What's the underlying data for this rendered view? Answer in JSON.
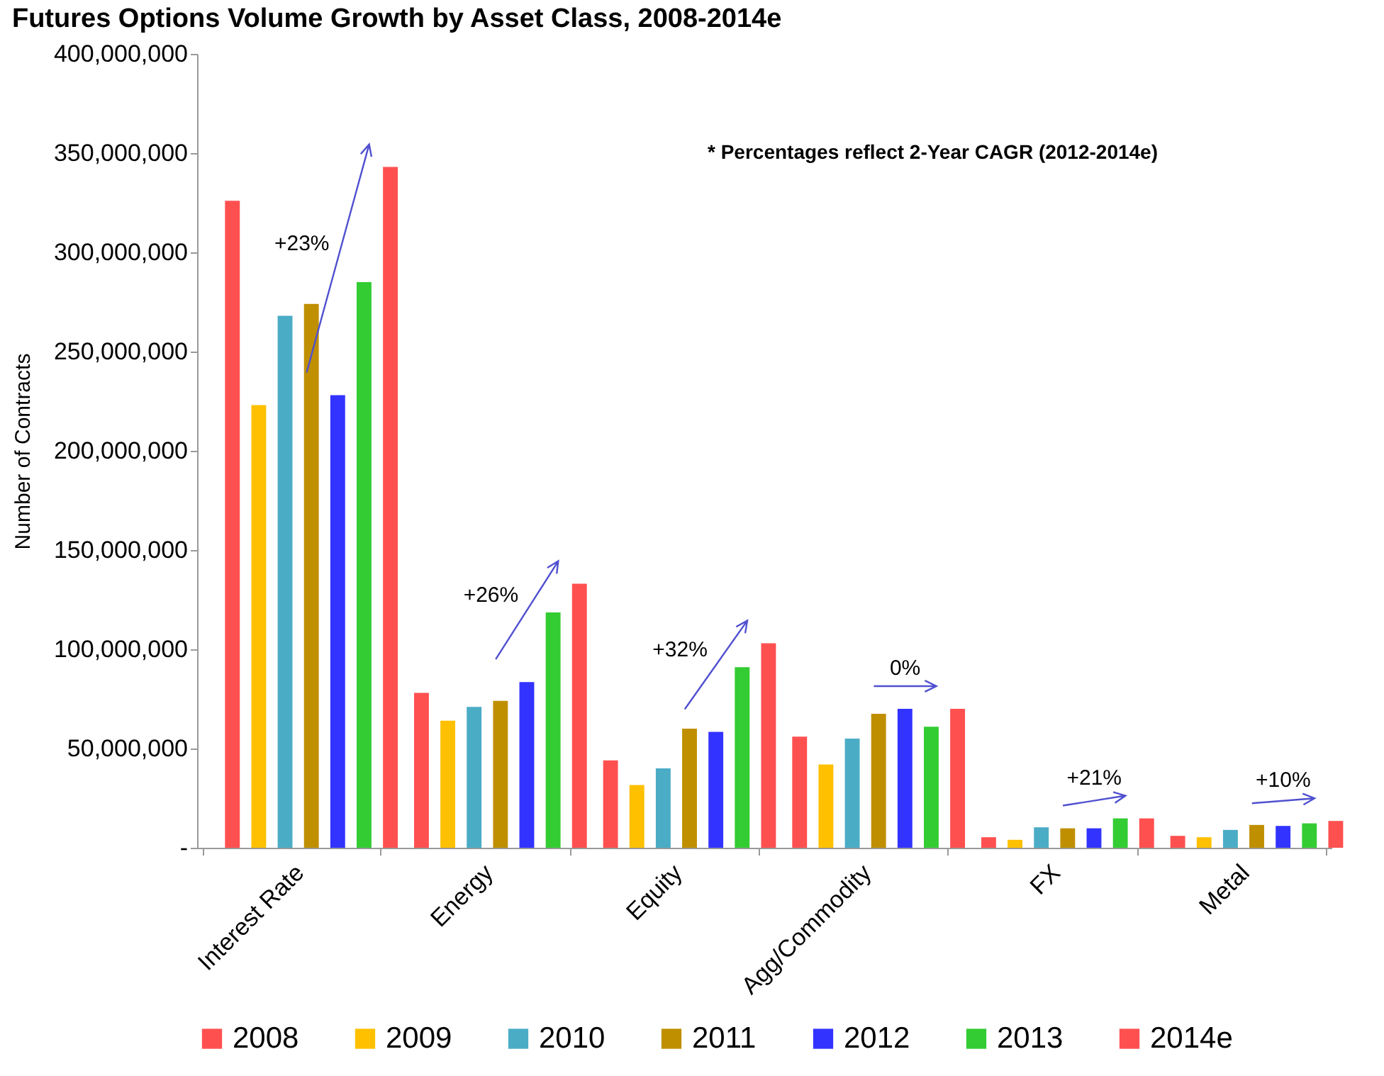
{
  "chart_data": {
    "type": "bar",
    "title": "Futures Options Volume Growth by Asset Class, 2008-2014e",
    "ylabel": "Number of Contracts",
    "categories": [
      "Interest Rate",
      "Energy",
      "Equity",
      "Agg/Commodity",
      "FX",
      "Metal"
    ],
    "series": [
      {
        "name": "2008",
        "color": "#ff5050",
        "values": [
          326000000,
          78000000,
          44000000,
          56000000,
          5300000,
          6000000
        ]
      },
      {
        "name": "2009",
        "color": "#ffc000",
        "values": [
          223000000,
          64000000,
          31600000,
          42000000,
          4000000,
          5300000
        ]
      },
      {
        "name": "2010",
        "color": "#4bacc6",
        "values": [
          268000000,
          71000000,
          40000000,
          55000000,
          10300000,
          9000000
        ]
      },
      {
        "name": "2011",
        "color": "#bf8f00",
        "values": [
          274000000,
          74000000,
          60000000,
          67500000,
          9800000,
          11500000
        ]
      },
      {
        "name": "2012",
        "color": "#3333ff",
        "values": [
          228000000,
          83500000,
          58400000,
          70000000,
          9800000,
          11000000
        ]
      },
      {
        "name": "2013",
        "color": "#33cc33",
        "values": [
          285000000,
          118600000,
          91000000,
          61000000,
          14800000,
          12300000
        ]
      },
      {
        "name": "2014e",
        "color": "#ff5050",
        "values": [
          343000000,
          133000000,
          103000000,
          70000000,
          14800000,
          13500000
        ]
      }
    ],
    "ylim": [
      0,
      400000000
    ],
    "yticks": [
      {
        "value": 0,
        "label": "-"
      },
      {
        "value": 50000000,
        "label": "50,000,000"
      },
      {
        "value": 100000000,
        "label": "100,000,000"
      },
      {
        "value": 150000000,
        "label": "150,000,000"
      },
      {
        "value": 200000000,
        "label": "200,000,000"
      },
      {
        "value": 250000000,
        "label": "250,000,000"
      },
      {
        "value": 300000000,
        "label": "300,000,000"
      },
      {
        "value": 350000000,
        "label": "350,000,000"
      },
      {
        "value": 400000000,
        "label": "400,000,000"
      }
    ],
    "grid": false,
    "legend": "bottom",
    "annotations": [
      "+23%",
      "+26%",
      "+32%",
      "0%",
      "+21%",
      "+10%",
      "* Percentages reflect 2-Year CAGR (2012-2014e)"
    ]
  }
}
